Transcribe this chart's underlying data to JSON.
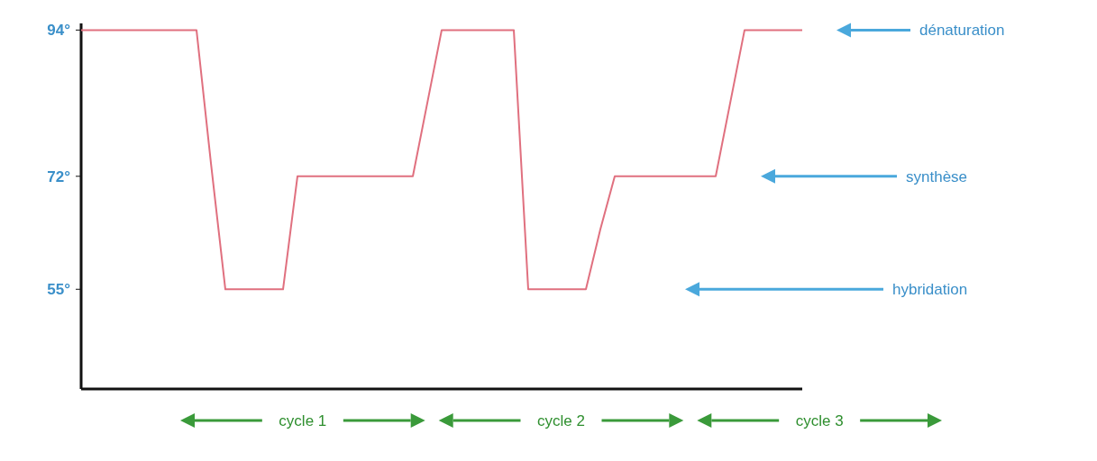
{
  "chart_data": {
    "type": "line",
    "categories": [
      null,
      null,
      null,
      null,
      null,
      null,
      null,
      null,
      null,
      null,
      null,
      null,
      null,
      null,
      null,
      null,
      null,
      null,
      null,
      null,
      null,
      null,
      null,
      null,
      null,
      null,
      null,
      null,
      null,
      null,
      null,
      null,
      null,
      null,
      null,
      null,
      null,
      null,
      null,
      null,
      null,
      null,
      null,
      null,
      null,
      null,
      null,
      null,
      null,
      null,
      null
    ],
    "values": [
      94,
      94,
      94,
      94,
      94,
      94,
      94,
      94,
      94,
      74,
      55,
      55,
      55,
      55,
      55,
      72,
      72,
      72,
      72,
      72,
      72,
      72,
      72,
      72,
      83,
      94,
      94,
      94,
      94,
      94,
      94,
      55,
      55,
      55,
      55,
      55,
      64,
      72,
      72,
      72,
      72,
      72,
      72,
      72,
      72,
      83,
      94,
      94,
      94,
      94,
      94
    ],
    "color": "#e0707f",
    "ylim": [
      40,
      95
    ],
    "yticks": [
      {
        "value": 55,
        "label": "55°"
      },
      {
        "value": 72,
        "label": "72°"
      },
      {
        "value": 94,
        "label": "94°"
      }
    ],
    "grid": false,
    "marker": "none",
    "line_style": "solid",
    "annotations": [
      "dénaturation",
      "synthèse",
      "hybridation",
      "cycle 1",
      "cycle 2",
      "cycle 3"
    ]
  }
}
